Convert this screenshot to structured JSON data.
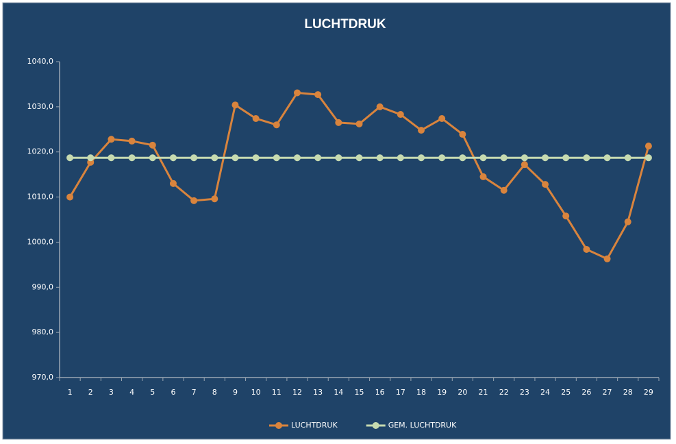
{
  "chart_data": {
    "type": "line",
    "title": "LUCHTDRUK",
    "categories": [
      "1",
      "2",
      "3",
      "4",
      "5",
      "6",
      "7",
      "8",
      "9",
      "10",
      "11",
      "12",
      "13",
      "14",
      "15",
      "16",
      "17",
      "18",
      "19",
      "20",
      "21",
      "22",
      "23",
      "24",
      "25",
      "26",
      "27",
      "28",
      "29"
    ],
    "series": [
      {
        "name": "LUCHTDRUK",
        "color": "#d9843d",
        "values": [
          1010.0,
          1017.7,
          1022.8,
          1022.4,
          1021.5,
          1013.0,
          1009.2,
          1009.6,
          1030.4,
          1027.4,
          1026.0,
          1033.1,
          1032.7,
          1026.5,
          1026.2,
          1030.0,
          1028.3,
          1024.8,
          1027.4,
          1023.9,
          1014.5,
          1011.5,
          1017.2,
          1012.8,
          1005.8,
          998.4,
          996.3,
          1004.5,
          1021.3
        ]
      },
      {
        "name": "GEM. LUCHTDRUK",
        "color": "#c6dab0",
        "values": [
          1018.7,
          1018.7,
          1018.7,
          1018.7,
          1018.7,
          1018.7,
          1018.7,
          1018.7,
          1018.7,
          1018.7,
          1018.7,
          1018.7,
          1018.7,
          1018.7,
          1018.7,
          1018.7,
          1018.7,
          1018.7,
          1018.7,
          1018.7,
          1018.7,
          1018.7,
          1018.7,
          1018.7,
          1018.7,
          1018.7,
          1018.7,
          1018.7,
          1018.7
        ]
      }
    ],
    "ylim": [
      970,
      1040
    ],
    "yticks": [
      {
        "value": 970,
        "label": "970,0"
      },
      {
        "value": 980,
        "label": "980,0"
      },
      {
        "value": 990,
        "label": "990,0"
      },
      {
        "value": 1000,
        "label": "1000,0"
      },
      {
        "value": 1010,
        "label": "1010,0"
      },
      {
        "value": 1020,
        "label": "1020,0"
      },
      {
        "value": 1030,
        "label": "1030,0"
      },
      {
        "value": 1040,
        "label": "1040,0"
      }
    ],
    "grid": false,
    "legend": "bottom"
  }
}
